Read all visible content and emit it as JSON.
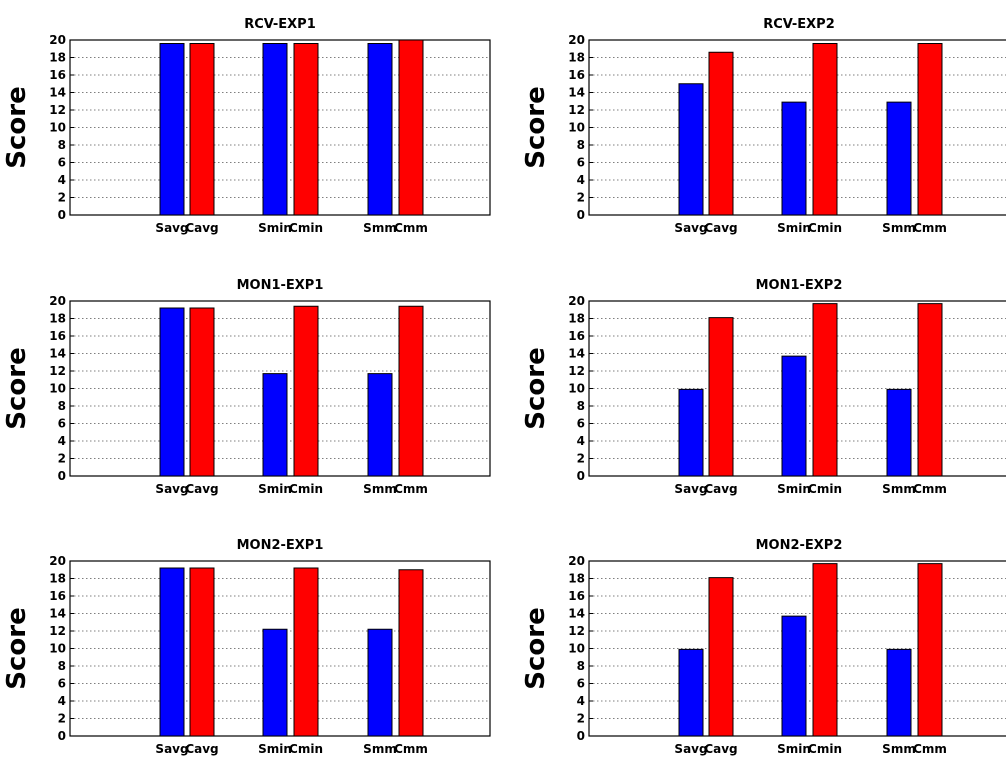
{
  "chart_data": [
    {
      "type": "bar",
      "title": "RCV-EXP1",
      "ylabel": "Score",
      "xlabel": "",
      "ylim": [
        0,
        20
      ],
      "yticks": [
        0,
        2,
        4,
        6,
        8,
        10,
        12,
        14,
        16,
        18,
        20
      ],
      "grid": true,
      "categories": [
        "Savg",
        "Cavg",
        "Smin",
        "Cmin",
        "Smm",
        "Cmm"
      ],
      "colors": [
        "#0000ff",
        "#ff0000",
        "#0000ff",
        "#ff0000",
        "#0000ff",
        "#ff0000"
      ],
      "values": [
        19.6,
        19.6,
        19.6,
        19.6,
        19.6,
        20
      ]
    },
    {
      "type": "bar",
      "title": "RCV-EXP2",
      "ylabel": "Score",
      "xlabel": "",
      "ylim": [
        0,
        20
      ],
      "yticks": [
        0,
        2,
        4,
        6,
        8,
        10,
        12,
        14,
        16,
        18,
        20
      ],
      "grid": true,
      "categories": [
        "Savg",
        "Cavg",
        "Smin",
        "Cmin",
        "Smm",
        "Cmm"
      ],
      "colors": [
        "#0000ff",
        "#ff0000",
        "#0000ff",
        "#ff0000",
        "#0000ff",
        "#ff0000"
      ],
      "values": [
        15,
        18.6,
        12.9,
        19.6,
        12.9,
        19.6
      ]
    },
    {
      "type": "bar",
      "title": "MON1-EXP1",
      "ylabel": "Score",
      "xlabel": "",
      "ylim": [
        0,
        20
      ],
      "yticks": [
        0,
        2,
        4,
        6,
        8,
        10,
        12,
        14,
        16,
        18,
        20
      ],
      "grid": true,
      "categories": [
        "Savg",
        "Cavg",
        "Smin",
        "Cmin",
        "Smm",
        "Cmm"
      ],
      "colors": [
        "#0000ff",
        "#ff0000",
        "#0000ff",
        "#ff0000",
        "#0000ff",
        "#ff0000"
      ],
      "values": [
        19.2,
        19.2,
        11.7,
        19.4,
        11.7,
        19.4
      ]
    },
    {
      "type": "bar",
      "title": "MON1-EXP2",
      "ylabel": "Score",
      "xlabel": "",
      "ylim": [
        0,
        20
      ],
      "yticks": [
        0,
        2,
        4,
        6,
        8,
        10,
        12,
        14,
        16,
        18,
        20
      ],
      "grid": true,
      "categories": [
        "Savg",
        "Cavg",
        "Smin",
        "Cmin",
        "Smm",
        "Cmm"
      ],
      "colors": [
        "#0000ff",
        "#ff0000",
        "#0000ff",
        "#ff0000",
        "#0000ff",
        "#ff0000"
      ],
      "values": [
        9.9,
        18.1,
        13.7,
        19.7,
        9.9,
        19.7
      ]
    },
    {
      "type": "bar",
      "title": "MON2-EXP1",
      "ylabel": "Score",
      "xlabel": "",
      "ylim": [
        0,
        20
      ],
      "yticks": [
        0,
        2,
        4,
        6,
        8,
        10,
        12,
        14,
        16,
        18,
        20
      ],
      "grid": true,
      "categories": [
        "Savg",
        "Cavg",
        "Smin",
        "Cmin",
        "Smm",
        "Cmm"
      ],
      "colors": [
        "#0000ff",
        "#ff0000",
        "#0000ff",
        "#ff0000",
        "#0000ff",
        "#ff0000"
      ],
      "values": [
        19.2,
        19.2,
        12.2,
        19.2,
        12.2,
        19
      ]
    },
    {
      "type": "bar",
      "title": "MON2-EXP2",
      "ylabel": "Score",
      "xlabel": "",
      "ylim": [
        0,
        20
      ],
      "yticks": [
        0,
        2,
        4,
        6,
        8,
        10,
        12,
        14,
        16,
        18,
        20
      ],
      "grid": true,
      "categories": [
        "Savg",
        "Cavg",
        "Smin",
        "Cmin",
        "Smm",
        "Cmm"
      ],
      "colors": [
        "#0000ff",
        "#ff0000",
        "#0000ff",
        "#ff0000",
        "#0000ff",
        "#ff0000"
      ],
      "values": [
        9.9,
        18.1,
        13.7,
        19.7,
        9.9,
        19.7
      ]
    }
  ]
}
